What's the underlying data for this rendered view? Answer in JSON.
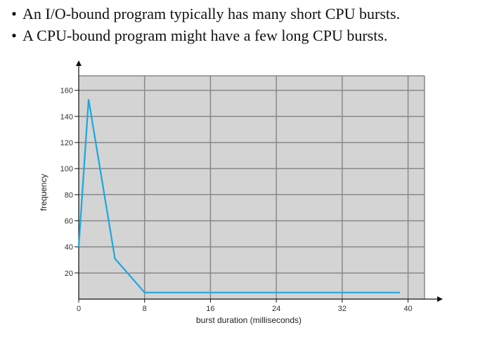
{
  "bullets": [
    {
      "symbol": "•",
      "text": "An I/O-bound program typically has many short CPU bursts."
    },
    {
      "symbol": "•",
      "text": "A CPU-bound program might have a few long CPU bursts."
    }
  ],
  "colors": {
    "plot_background": "#d4d4d4",
    "grid": "#888888",
    "line": "#19a8e0",
    "axis": "#111111"
  },
  "chart_data": {
    "type": "line",
    "title": "",
    "xlabel": "burst duration (milliseconds)",
    "ylabel": "frequency",
    "xlim": [
      0,
      42
    ],
    "ylim": [
      0,
      170
    ],
    "x_ticks": [
      0,
      8,
      16,
      24,
      32,
      40
    ],
    "y_ticks": [
      20,
      40,
      60,
      80,
      100,
      120,
      140,
      160
    ],
    "grid": true,
    "legend": "none",
    "series": [
      {
        "x": [
          0,
          1.2,
          4.4,
          8,
          16,
          24,
          32,
          39
        ],
        "y": [
          40,
          153,
          31,
          5,
          5,
          5,
          5,
          5
        ]
      }
    ]
  }
}
